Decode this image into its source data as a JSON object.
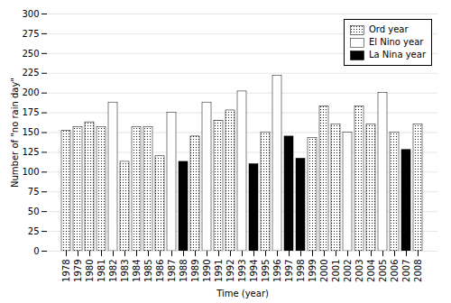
{
  "chart_data": {
    "type": "bar",
    "categories": [
      "1978",
      "1979",
      "1980",
      "1981",
      "1982",
      "1983",
      "1984",
      "1985",
      "1986",
      "1987",
      "1988",
      "1989",
      "1990",
      "1991",
      "1992",
      "1993",
      "1994",
      "1995",
      "1996",
      "1997",
      "1998",
      "1999",
      "2000",
      "2001",
      "2002",
      "2003",
      "2004",
      "2005",
      "2006",
      "2007",
      "2008"
    ],
    "series": [
      {
        "name": "Ord year",
        "color": "white",
        "marker": "dots",
        "values": [
          152,
          157,
          163,
          157,
          null,
          113,
          157,
          157,
          120,
          null,
          null,
          145,
          null,
          165,
          178,
          null,
          null,
          150,
          null,
          null,
          null,
          143,
          183,
          160,
          null,
          183,
          160,
          null,
          150,
          null,
          160
        ]
      },
      {
        "name": "El Nino year",
        "color": "white",
        "values": [
          null,
          null,
          null,
          null,
          188,
          null,
          null,
          null,
          null,
          175,
          null,
          null,
          188,
          null,
          null,
          202,
          null,
          null,
          222,
          null,
          null,
          null,
          null,
          null,
          150,
          null,
          null,
          200,
          null,
          null,
          null
        ]
      },
      {
        "name": "La Nina year",
        "color": "black",
        "values": [
          null,
          null,
          null,
          null,
          null,
          null,
          null,
          null,
          null,
          null,
          113,
          null,
          null,
          null,
          null,
          null,
          110,
          null,
          null,
          145,
          117,
          null,
          null,
          null,
          null,
          null,
          null,
          null,
          null,
          128,
          null
        ]
      }
    ],
    "stacked": true,
    "xlabel": "Time (year)",
    "ylabel": "Number of \"no rain day\"",
    "ylim": [
      0,
      300
    ],
    "yticks": [
      0,
      25,
      50,
      75,
      100,
      125,
      150,
      175,
      200,
      225,
      250,
      275,
      300
    ],
    "grid": true,
    "legend": "upper right"
  }
}
